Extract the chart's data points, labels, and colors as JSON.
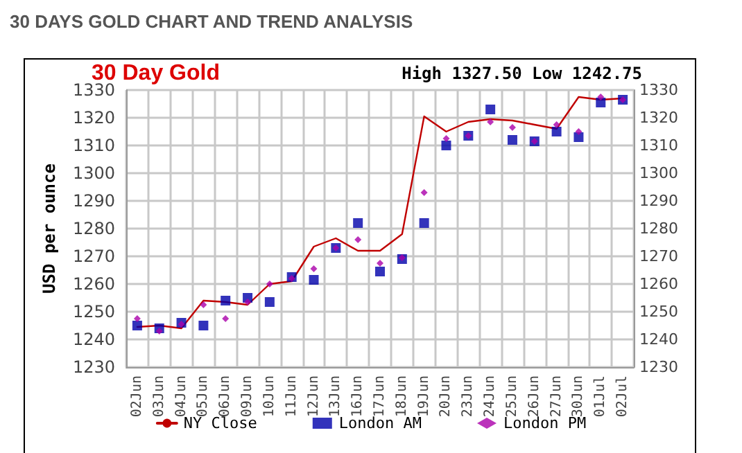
{
  "chart_data": {
    "type": "line",
    "title": "30 DAYS GOLD CHART AND TREND ANALYSIS",
    "ylabel": "USD per ounce",
    "annotations": [
      "30 Day Gold",
      "High 1327.50 Low 1242.75"
    ],
    "categories": [
      "02Jun",
      "03Jun",
      "04Jun",
      "05Jun",
      "06Jun",
      "09Jun",
      "10Jun",
      "11Jun",
      "12Jun",
      "13Jun",
      "16Jun",
      "17Jun",
      "18Jun",
      "19Jun",
      "20Jun",
      "23Jun",
      "24Jun",
      "25Jun",
      "26Jun",
      "27Jun",
      "30Jun",
      "01Jul",
      "02Jul"
    ],
    "series": [
      {
        "name": "NY Close",
        "type": "line",
        "marker": "none",
        "line_style": "solid",
        "color": "#c00000",
        "values": [
          1244.5,
          1245,
          1244,
          1254,
          1253.5,
          1252.5,
          1260,
          1261,
          1273.5,
          1276.5,
          1272,
          1272,
          1278,
          1320.5,
          1315,
          1318.5,
          1319.5,
          1319,
          1317.5,
          1316,
          1327.5,
          1326.5,
          1327
        ]
      },
      {
        "name": "London AM",
        "type": "scatter",
        "marker": "square",
        "color": "#0000aa",
        "values": [
          1245,
          1244,
          1246,
          1245,
          1254,
          1255,
          1253.5,
          1262.5,
          1261.5,
          1273,
          1282,
          1264.5,
          1269,
          1282,
          1310,
          1313.5,
          1323,
          1312,
          1311.5,
          1315,
          1313,
          1325.5,
          1326.5
        ]
      },
      {
        "name": "London PM",
        "type": "scatter",
        "marker": "diamond",
        "color": "#aa00aa",
        "values": [
          1247.5,
          1243,
          1245.5,
          1252.5,
          1247.5,
          1253.5,
          1260,
          1262,
          1265.5,
          1273,
          1276,
          1267.5,
          1269.5,
          1293,
          1312.5,
          1313.5,
          1318.5,
          1316.5,
          1311.5,
          1317.5,
          1315,
          1327.5,
          1326.5
        ]
      }
    ],
    "ylim": [
      1230,
      1330
    ],
    "yticks": [
      1230,
      1240,
      1250,
      1260,
      1270,
      1280,
      1290,
      1300,
      1310,
      1320,
      1330
    ],
    "y2lim": [
      1230,
      1330
    ],
    "y2ticks": [
      1230,
      1240,
      1250,
      1260,
      1270,
      1280,
      1290,
      1300,
      1310,
      1320,
      1330
    ],
    "grid": true,
    "legend": "bottom"
  }
}
